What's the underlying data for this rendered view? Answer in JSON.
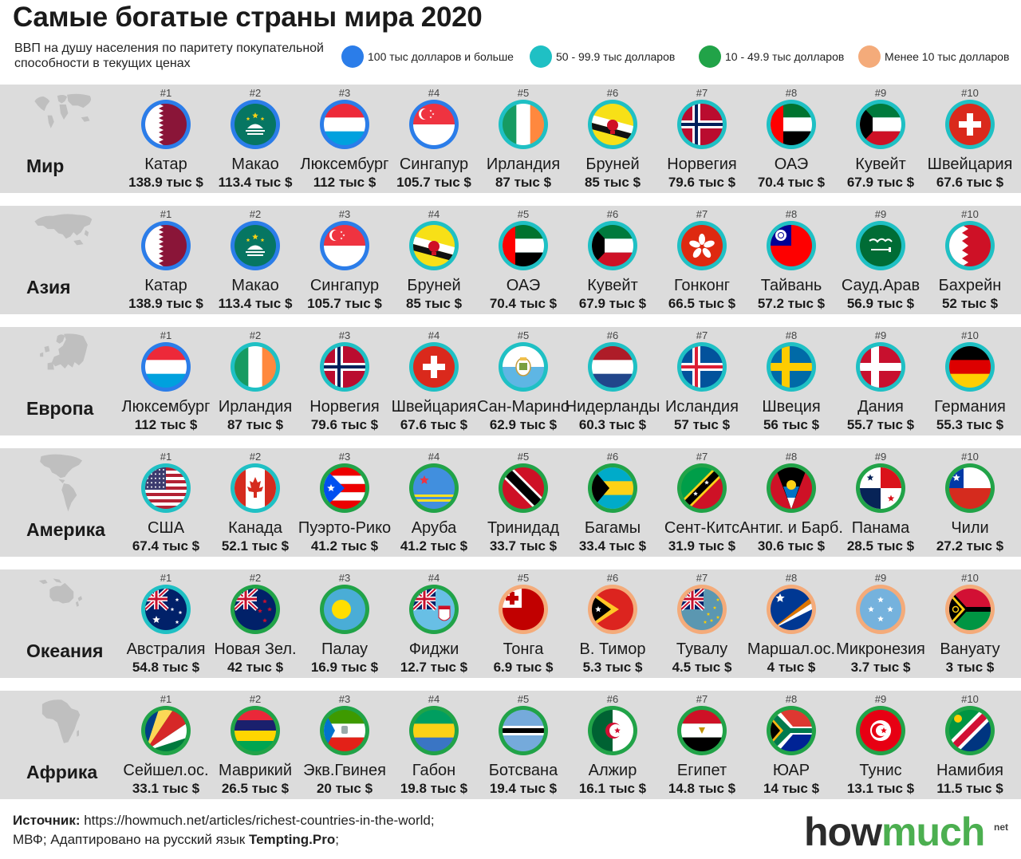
{
  "title": "Самые богатые страны мира 2020",
  "subtitle": "ВВП на душу населения по паритету покупательной способности в текущих ценах",
  "colors": {
    "tier1": "#2b7de9",
    "tier2": "#1fc0c4",
    "tier3": "#21a348",
    "tier4": "#f4ab7a",
    "band": "#dcdcdc",
    "map": "#bfbfbf"
  },
  "legend": [
    {
      "tier": "tier1",
      "label": "100 тыс долларов и больше"
    },
    {
      "tier": "tier2",
      "label": "50 - 99.9 тыс долларов"
    },
    {
      "tier": "tier3",
      "label": "10 - 49.9 тыс долларов"
    },
    {
      "tier": "tier4",
      "label": "Менее 10 тыс долларов"
    }
  ],
  "regions": [
    {
      "name": "Мир",
      "map": "world",
      "countries": [
        {
          "rank": "#1",
          "name": "Катар",
          "value": "138.9 тыс $",
          "tier": "tier1",
          "flag": "qatar"
        },
        {
          "rank": "#2",
          "name": "Макао",
          "value": "113.4 тыс $",
          "tier": "tier1",
          "flag": "macao"
        },
        {
          "rank": "#3",
          "name": "Люксембург",
          "value": "112 тыс $",
          "tier": "tier1",
          "flag": "luxembourg"
        },
        {
          "rank": "#4",
          "name": "Сингапур",
          "value": "105.7 тыс $",
          "tier": "tier1",
          "flag": "singapore"
        },
        {
          "rank": "#5",
          "name": "Ирландия",
          "value": "87 тыс $",
          "tier": "tier2",
          "flag": "ireland"
        },
        {
          "rank": "#6",
          "name": "Бруней",
          "value": "85 тыс $",
          "tier": "tier2",
          "flag": "brunei"
        },
        {
          "rank": "#7",
          "name": "Норвегия",
          "value": "79.6 тыс $",
          "tier": "tier2",
          "flag": "norway"
        },
        {
          "rank": "#8",
          "name": "ОАЭ",
          "value": "70.4 тыс $",
          "tier": "tier2",
          "flag": "uae"
        },
        {
          "rank": "#9",
          "name": "Кувейт",
          "value": "67.9 тыс $",
          "tier": "tier2",
          "flag": "kuwait"
        },
        {
          "rank": "#10",
          "name": "Швейцария",
          "value": "67.6 тыс $",
          "tier": "tier2",
          "flag": "switzerland"
        }
      ]
    },
    {
      "name": "Азия",
      "map": "asia",
      "countries": [
        {
          "rank": "#1",
          "name": "Катар",
          "value": "138.9 тыс $",
          "tier": "tier1",
          "flag": "qatar"
        },
        {
          "rank": "#2",
          "name": "Макао",
          "value": "113.4 тыс $",
          "tier": "tier1",
          "flag": "macao"
        },
        {
          "rank": "#3",
          "name": "Сингапур",
          "value": "105.7 тыс $",
          "tier": "tier1",
          "flag": "singapore"
        },
        {
          "rank": "#4",
          "name": "Бруней",
          "value": "85 тыс $",
          "tier": "tier2",
          "flag": "brunei"
        },
        {
          "rank": "#5",
          "name": "ОАЭ",
          "value": "70.4 тыс $",
          "tier": "tier2",
          "flag": "uae"
        },
        {
          "rank": "#6",
          "name": "Кувейт",
          "value": "67.9 тыс $",
          "tier": "tier2",
          "flag": "kuwait"
        },
        {
          "rank": "#7",
          "name": "Гонконг",
          "value": "66.5 тыс $",
          "tier": "tier2",
          "flag": "hongkong"
        },
        {
          "rank": "#8",
          "name": "Тайвань",
          "value": "57.2 тыс $",
          "tier": "tier2",
          "flag": "taiwan"
        },
        {
          "rank": "#9",
          "name": "Сауд.Арав",
          "value": "56.9 тыс $",
          "tier": "tier2",
          "flag": "saudi"
        },
        {
          "rank": "#10",
          "name": "Бахрейн",
          "value": "52 тыс $",
          "tier": "tier2",
          "flag": "bahrain"
        }
      ]
    },
    {
      "name": "Европа",
      "map": "europe",
      "countries": [
        {
          "rank": "#1",
          "name": "Люксембург",
          "value": "112 тыс $",
          "tier": "tier1",
          "flag": "luxembourg"
        },
        {
          "rank": "#2",
          "name": "Ирландия",
          "value": "87 тыс $",
          "tier": "tier2",
          "flag": "ireland"
        },
        {
          "rank": "#3",
          "name": "Норвегия",
          "value": "79.6 тыс $",
          "tier": "tier2",
          "flag": "norway"
        },
        {
          "rank": "#4",
          "name": "Швейцария",
          "value": "67.6 тыс $",
          "tier": "tier2",
          "flag": "switzerland"
        },
        {
          "rank": "#5",
          "name": "Сан-Марино",
          "value": "62.9 тыс $",
          "tier": "tier2",
          "flag": "sanmarino"
        },
        {
          "rank": "#6",
          "name": "Нидерланды",
          "value": "60.3 тыс $",
          "tier": "tier2",
          "flag": "netherlands"
        },
        {
          "rank": "#7",
          "name": "Исландия",
          "value": "57 тыс $",
          "tier": "tier2",
          "flag": "iceland"
        },
        {
          "rank": "#8",
          "name": "Швеция",
          "value": "56 тыс $",
          "tier": "tier2",
          "flag": "sweden"
        },
        {
          "rank": "#9",
          "name": "Дания",
          "value": "55.7 тыс $",
          "tier": "tier2",
          "flag": "denmark"
        },
        {
          "rank": "#10",
          "name": "Германия",
          "value": "55.3 тыс $",
          "tier": "tier2",
          "flag": "germany"
        }
      ]
    },
    {
      "name": "Америка",
      "map": "america",
      "countries": [
        {
          "rank": "#1",
          "name": "США",
          "value": "67.4 тыс $",
          "tier": "tier2",
          "flag": "usa"
        },
        {
          "rank": "#2",
          "name": "Канада",
          "value": "52.1 тыс $",
          "tier": "tier2",
          "flag": "canada"
        },
        {
          "rank": "#3",
          "name": "Пуэрто-Рико",
          "value": "41.2 тыс $",
          "tier": "tier3",
          "flag": "puertorico"
        },
        {
          "rank": "#4",
          "name": "Аруба",
          "value": "41.2 тыс $",
          "tier": "tier3",
          "flag": "aruba"
        },
        {
          "rank": "#5",
          "name": "Тринидад",
          "value": "33.7 тыс $",
          "tier": "tier3",
          "flag": "trinidad"
        },
        {
          "rank": "#6",
          "name": "Багамы",
          "value": "33.4 тыс $",
          "tier": "tier3",
          "flag": "bahamas"
        },
        {
          "rank": "#7",
          "name": "Сент-Китс",
          "value": "31.9 тыс $",
          "tier": "tier3",
          "flag": "stkitts"
        },
        {
          "rank": "#8",
          "name": "Антиг. и Барб.",
          "value": "30.6 тыс $",
          "tier": "tier3",
          "flag": "antigua"
        },
        {
          "rank": "#9",
          "name": "Панама",
          "value": "28.5 тыс $",
          "tier": "tier3",
          "flag": "panama"
        },
        {
          "rank": "#10",
          "name": "Чили",
          "value": "27.2 тыс $",
          "tier": "tier3",
          "flag": "chile"
        }
      ]
    },
    {
      "name": "Океания",
      "map": "oceania",
      "countries": [
        {
          "rank": "#1",
          "name": "Австралия",
          "value": "54.8 тыс $",
          "tier": "tier2",
          "flag": "australia"
        },
        {
          "rank": "#2",
          "name": "Новая Зел.",
          "value": "42 тыс $",
          "tier": "tier3",
          "flag": "newzealand"
        },
        {
          "rank": "#3",
          "name": "Палау",
          "value": "16.9 тыс $",
          "tier": "tier3",
          "flag": "palau"
        },
        {
          "rank": "#4",
          "name": "Фиджи",
          "value": "12.7 тыс $",
          "tier": "tier3",
          "flag": "fiji"
        },
        {
          "rank": "#5",
          "name": "Тонга",
          "value": "6.9 тыс $",
          "tier": "tier4",
          "flag": "tonga"
        },
        {
          "rank": "#6",
          "name": "В. Тимор",
          "value": "5.3 тыс $",
          "tier": "tier4",
          "flag": "easttimor"
        },
        {
          "rank": "#7",
          "name": "Тувалу",
          "value": "4.5 тыс $",
          "tier": "tier4",
          "flag": "tuvalu"
        },
        {
          "rank": "#8",
          "name": "Маршал.ос.",
          "value": "4 тыс $",
          "tier": "tier4",
          "flag": "marshall"
        },
        {
          "rank": "#9",
          "name": "Микронезия",
          "value": "3.7 тыс $",
          "tier": "tier4",
          "flag": "micronesia"
        },
        {
          "rank": "#10",
          "name": "Вануату",
          "value": "3 тыс $",
          "tier": "tier4",
          "flag": "vanuatu"
        }
      ]
    },
    {
      "name": "Африка",
      "map": "africa",
      "countries": [
        {
          "rank": "#1",
          "name": "Сейшел.ос.",
          "value": "33.1 тыс $",
          "tier": "tier3",
          "flag": "seychelles"
        },
        {
          "rank": "#2",
          "name": "Маврикий",
          "value": "26.5 тыс $",
          "tier": "tier3",
          "flag": "mauritius"
        },
        {
          "rank": "#3",
          "name": "Экв.Гвинея",
          "value": "20 тыс $",
          "tier": "tier3",
          "flag": "eqguinea"
        },
        {
          "rank": "#4",
          "name": "Габон",
          "value": "19.8 тыс $",
          "tier": "tier3",
          "flag": "gabon"
        },
        {
          "rank": "#5",
          "name": "Ботсвана",
          "value": "19.4 тыс $",
          "tier": "tier3",
          "flag": "botswana"
        },
        {
          "rank": "#6",
          "name": "Алжир",
          "value": "16.1 тыс $",
          "tier": "tier3",
          "flag": "algeria"
        },
        {
          "rank": "#7",
          "name": "Египет",
          "value": "14.8 тыс $",
          "tier": "tier3",
          "flag": "egypt"
        },
        {
          "rank": "#8",
          "name": "ЮАР",
          "value": "14 тыс $",
          "tier": "tier3",
          "flag": "southafrica"
        },
        {
          "rank": "#9",
          "name": "Тунис",
          "value": "13.1 тыс $",
          "tier": "tier3",
          "flag": "tunisia"
        },
        {
          "rank": "#10",
          "name": "Намибия",
          "value": "11.5 тыс $",
          "tier": "tier3",
          "flag": "namibia"
        }
      ]
    }
  ],
  "footer": {
    "source_label": "Источник:",
    "source_text": " https://howmuch.net/articles/richest-countries-in-the-world;",
    "line2_text": "МВФ; Адаптировано на русский язык ",
    "line2_bold": "Tempting.Pro",
    "line2_end": ";"
  },
  "brand": {
    "how": "how",
    "much": "much",
    "net": "net"
  }
}
